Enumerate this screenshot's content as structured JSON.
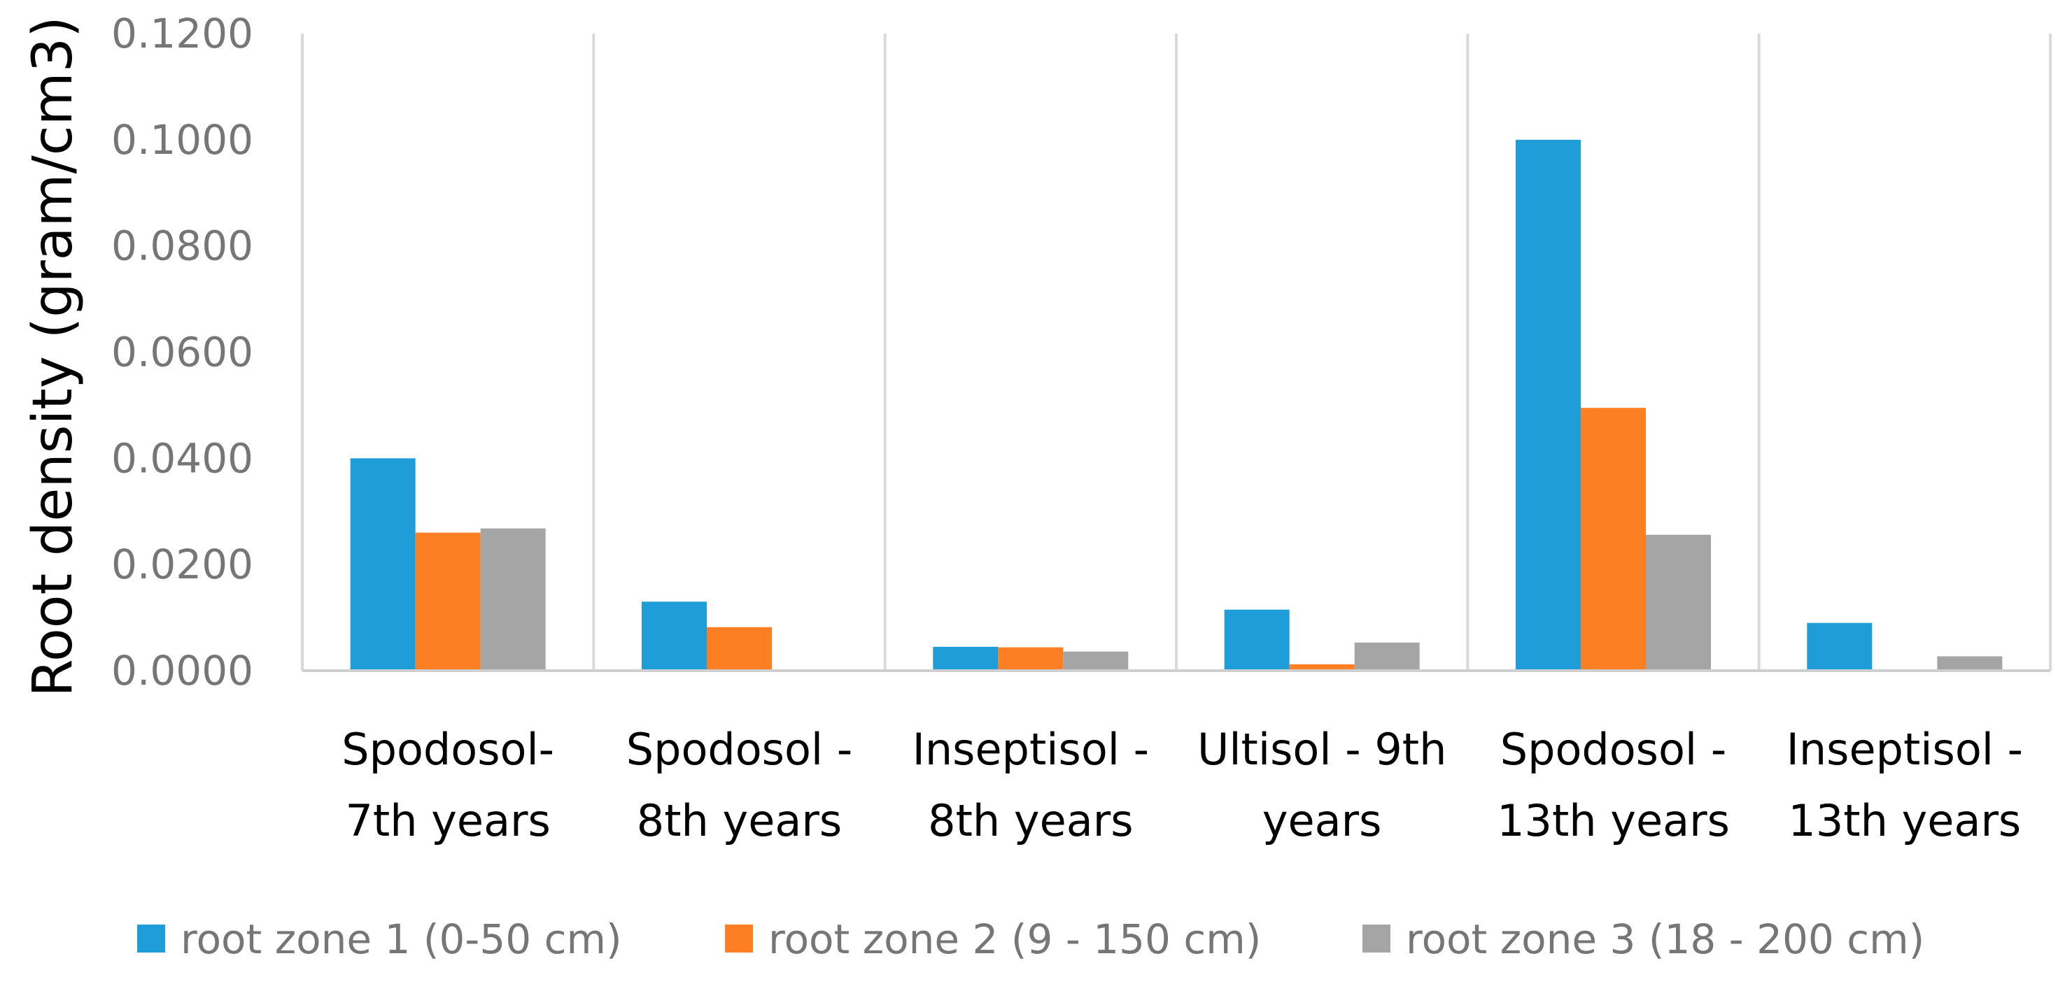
{
  "chart_data": {
    "type": "bar",
    "title": "",
    "ylabel": "Root density (gram/cm3)",
    "xlabel": "",
    "ylim": [
      0,
      0.12
    ],
    "yticks": [
      "0.0000",
      "0.0200",
      "0.0400",
      "0.0600",
      "0.0800",
      "0.1000",
      "0.1200"
    ],
    "grid": "vertical separators between categories",
    "legend_position": "bottom",
    "categories": [
      [
        "Spodosol-",
        "7th years"
      ],
      [
        "Spodosol -",
        "8th years"
      ],
      [
        "Inseptisol -",
        "8th years"
      ],
      [
        "Ultisol - 9th",
        "years"
      ],
      [
        "Spodosol -",
        "13th years"
      ],
      [
        "Inseptisol -",
        "13th years"
      ]
    ],
    "series": [
      {
        "name": "root zone 1 (0-50 cm)",
        "color": "#1f9dd9",
        "values": [
          0.04,
          0.013,
          0.0045,
          0.0115,
          0.1,
          0.009
        ]
      },
      {
        "name": "root zone 2 (9 - 150 cm)",
        "color": "#fd7f23",
        "values": [
          0.026,
          0.0082,
          0.0044,
          0.0012,
          0.0495,
          0
        ]
      },
      {
        "name": "root zone 3 (18 - 200 cm)",
        "color": "#a5a5a5",
        "values": [
          0.0268,
          0,
          0.0036,
          0.0053,
          0.0256,
          0.0027
        ]
      }
    ]
  }
}
